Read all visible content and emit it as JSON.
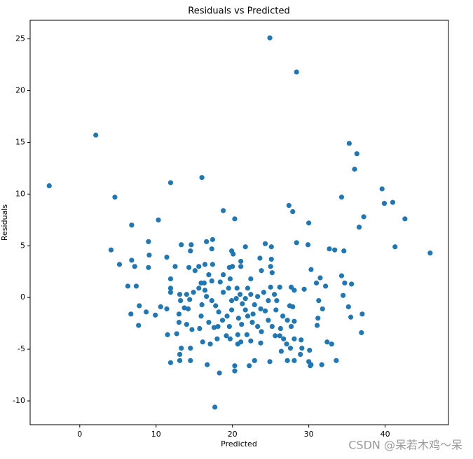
{
  "chart_data": {
    "type": "scatter",
    "title": "Residuals vs Predicted",
    "x_label": "Predicted",
    "y_label": "Residuals",
    "color": "#1f77b4",
    "grid": false,
    "xlim": [
      -6.5,
      48.3
    ],
    "ylim": [
      -12.3,
      26.8
    ],
    "xticks": [
      0,
      10,
      20,
      30,
      40
    ],
    "yticks": [
      -10,
      -5,
      0,
      5,
      10,
      15,
      20,
      25
    ],
    "x": [
      24.9,
      28.4,
      2.1,
      -4.0,
      4.6,
      11.9,
      16.0,
      35.3,
      36.3,
      36.0,
      34.3,
      39.6,
      41.0,
      39.9,
      42.6,
      37.2,
      36.6,
      41.3,
      45.9,
      27.4,
      27.9,
      30.0,
      18.8,
      20.3,
      6.8,
      10.3,
      4.1,
      9.0,
      5.2,
      6.8,
      7.2,
      9.0,
      9.1,
      6.3,
      7.4,
      6.7,
      7.8,
      7.7,
      8.7,
      9.9,
      10.6,
      17.7,
      20.3,
      18.3,
      11.9,
      16.7,
      30.2,
      31.7,
      33.6,
      36.9,
      35.5,
      37.0,
      35.2,
      34.5,
      35.6,
      34.7,
      34.6,
      33.4,
      32.7,
      30.3,
      28.4,
      29.9,
      34.3,
      32.2,
      31.5,
      31.0,
      31.3,
      31.8,
      31.2,
      31.1,
      32.4,
      33.0,
      30.1,
      29.1,
      28.9,
      30.0,
      30.3,
      28.1,
      27.2,
      24.9,
      22.9,
      22.2,
      20.3,
      13.1,
      14.5,
      13.1,
      13.3,
      14.5,
      11.5,
      12.7,
      13.0,
      11.4,
      11.9,
      11.9,
      11.9,
      11.4,
      12.5,
      13.3,
      14.6,
      14.5,
      14.3,
      16.6,
      17.4,
      17.3,
      15.6,
      15.1,
      16.4,
      17.4,
      16.9,
      15.9,
      16.3,
      17.3,
      18.4,
      18.8,
      19.7,
      19.9,
      20.1,
      21.7,
      21.1,
      19.6,
      20.0,
      21.1,
      23.6,
      23.8,
      22.4,
      24.3,
      25.1,
      25.1,
      25.0,
      25.2,
      26.2,
      25.0,
      27.7,
      28.1,
      29.4,
      27.5,
      27.9,
      28.1,
      27.7,
      27.2,
      28.1,
      29.0,
      27.6,
      27.1,
      26.7,
      26.3,
      26.2,
      26.4,
      25.6,
      25.2,
      24.7,
      23.8,
      23.3,
      23.7,
      22.4,
      21.9,
      20.7,
      21.1,
      20.7,
      19.7,
      19.2,
      18.0,
      17.1,
      16.1,
      15.7,
      14.7,
      14.0,
      13.0,
      13.7,
      14.2,
      14.4,
      13.2,
      13.1,
      14.0,
      14.9,
      15.6,
      16.4,
      16.6,
      16.0,
      15.9,
      16.9,
      17.6,
      18.1,
      18.7,
      19.3,
      19.9,
      19.9,
      17.3,
      17.8,
      18.2,
      18.8,
      19.5,
      20.6,
      21.0,
      20.5,
      21.3,
      21.7,
      22.0,
      22.7,
      22.9,
      23.3,
      24.1,
      24.7,
      24.3,
      23.7,
      25.5,
      25.8,
      25.7,
      26.6,
      22.6,
      21.2,
      20.8,
      19.6,
      22.4,
      22.0,
      21.7
    ],
    "values": [
      25.1,
      21.8,
      15.7,
      10.8,
      9.7,
      11.1,
      11.6,
      14.9,
      13.9,
      12.4,
      9.7,
      10.5,
      9.2,
      9.1,
      7.6,
      7.8,
      6.8,
      4.9,
      4.3,
      8.9,
      8.3,
      7.2,
      8.4,
      7.6,
      7.0,
      7.5,
      4.6,
      5.4,
      3.2,
      3.6,
      3.0,
      2.9,
      4.1,
      1.1,
      1.1,
      -1.6,
      -0.8,
      -2.7,
      -1.4,
      -1.7,
      -0.9,
      -10.6,
      -7.1,
      -7.3,
      -6.3,
      -6.5,
      -6.6,
      -6.5,
      -6.1,
      -3.4,
      -1.9,
      -1.6,
      -0.9,
      0.2,
      1.3,
      1.4,
      4.5,
      4.6,
      4.7,
      2.7,
      5.3,
      5.1,
      2.1,
      1.1,
      1.9,
      1.4,
      -0.3,
      -1.1,
      -2.0,
      -2.7,
      -4.3,
      -4.5,
      -5.1,
      -4.9,
      -5.5,
      -6.2,
      -6.5,
      -6.1,
      -6.1,
      -6.2,
      -6.1,
      -6.6,
      -6.6,
      -6.1,
      -6.1,
      -5.5,
      -4.9,
      -4.9,
      -3.6,
      -3.5,
      -2.4,
      -1.1,
      0.5,
      0.9,
      1.8,
      3.9,
      3.0,
      5.1,
      5.1,
      4.5,
      2.9,
      5.4,
      5.6,
      4.7,
      3.0,
      2.6,
      3.2,
      3.2,
      2.2,
      1.4,
      1.4,
      1.6,
      1.5,
      2.2,
      1.8,
      4.5,
      4.2,
      4.9,
      3.0,
      2.9,
      3.0,
      3.5,
      3.8,
      2.6,
      1.8,
      5.2,
      4.9,
      3.7,
      3.0,
      2.4,
      1.0,
      1.0,
      1.0,
      0.7,
      0.8,
      -0.8,
      -0.9,
      -2.3,
      -2.8,
      -2.2,
      -4.0,
      -4.1,
      -4.9,
      -4.5,
      -4.0,
      -3.0,
      -3.7,
      -5.2,
      -3.7,
      -2.8,
      -2.2,
      -3.3,
      -2.8,
      -4.4,
      -4.2,
      -3.6,
      -3.6,
      -4.3,
      -4.5,
      -4.0,
      -3.7,
      -4.0,
      -4.5,
      -4.3,
      -3.0,
      -3.1,
      -2.6,
      -1.6,
      -1.0,
      -1.1,
      -0.2,
      -0.3,
      0.3,
      0.3,
      0.5,
      0.9,
      0.7,
      0.1,
      -0.7,
      -1.8,
      -2.4,
      -2.9,
      -2.8,
      -2.2,
      -1.8,
      -1.2,
      -0.3,
      -0.3,
      -0.8,
      -1.4,
      0.5,
      0.9,
      0.9,
      0.3,
      -0.1,
      -0.6,
      -1.2,
      -1.8,
      -1.6,
      -0.7,
      0.1,
      0.5,
      -0.3,
      -1.3,
      -1.1,
      0.3,
      -0.3,
      -1.2,
      -1.8,
      -2.4,
      -2.6,
      -2.0,
      -2.8,
      0.3,
      0.9,
      -0.1
    ]
  },
  "watermark": "CSDN @呆若木鸡～呆"
}
